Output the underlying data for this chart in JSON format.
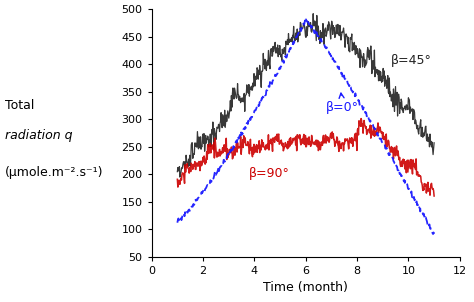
{
  "xlabel": "Time (month)",
  "ylabel_line1": "Total",
  "ylabel_line2": "radiation q",
  "ylabel_line3": "(μmole.m⁻².s⁻¹)",
  "xlim": [
    0,
    12
  ],
  "ylim": [
    50,
    500
  ],
  "xticks": [
    0,
    2,
    4,
    6,
    8,
    10,
    12
  ],
  "yticks": [
    50,
    100,
    150,
    200,
    250,
    300,
    350,
    400,
    450,
    500
  ],
  "color_45": "#222222",
  "color_0": "#1a1aff",
  "color_90": "#cc0000",
  "label_45": "β=45°",
  "label_0": "β=0°",
  "label_90": "β=90°",
  "figsize": [
    4.74,
    3.02
  ],
  "dpi": 100
}
